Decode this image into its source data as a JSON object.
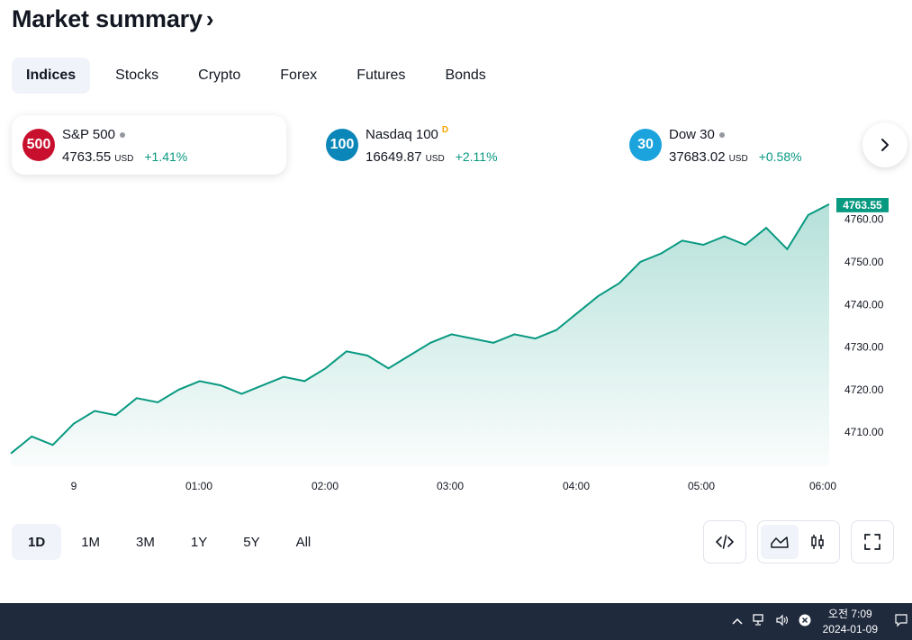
{
  "header": {
    "title": "Market summary",
    "chevron": "›"
  },
  "tabs": [
    {
      "label": "Indices",
      "active": true
    },
    {
      "label": "Stocks"
    },
    {
      "label": "Crypto"
    },
    {
      "label": "Forex"
    },
    {
      "label": "Futures"
    },
    {
      "label": "Bonds"
    }
  ],
  "cards": [
    {
      "badge": "500",
      "badge_color": "#c8102e",
      "name": "S&P 500",
      "value": "4763.55",
      "currency": "USD",
      "change": "+1.41%"
    },
    {
      "badge": "100",
      "badge_color": "#0a86b8",
      "name": "Nasdaq 100",
      "marker": "D",
      "value": "16649.87",
      "currency": "USD",
      "change": "+2.11%"
    },
    {
      "badge": "30",
      "badge_color": "#1aa3dc",
      "name": "Dow 30",
      "value": "37683.02",
      "currency": "USD",
      "change": "+0.58%"
    }
  ],
  "next_icon": "chevron-right-icon",
  "chart_data": {
    "type": "area",
    "series": [
      {
        "values": [
          4705,
          4709,
          4707,
          4712,
          4715,
          4714,
          4718,
          4717,
          4720,
          4722,
          4721,
          4719,
          4721,
          4723,
          4722,
          4725,
          4729,
          4728,
          4725,
          4728,
          4731,
          4733,
          4732,
          4731,
          4733,
          4732,
          4734,
          4738,
          4742,
          4745,
          4750,
          4752,
          4755,
          4754,
          4756,
          4754,
          4758,
          4753,
          4761,
          4763.55
        ]
      }
    ],
    "x_ticks": [
      "9",
      "01:00",
      "02:00",
      "03:00",
      "04:00",
      "05:00",
      "06:00"
    ],
    "y_ticks": [
      "4760.00",
      "4750.00",
      "4740.00",
      "4730.00",
      "4720.00",
      "4710.00"
    ],
    "ylim": [
      4702,
      4765
    ],
    "last_label": "4763.55",
    "line_color": "#089981"
  },
  "ranges": [
    {
      "label": "1D",
      "active": true
    },
    {
      "label": "1M"
    },
    {
      "label": "3M"
    },
    {
      "label": "1Y"
    },
    {
      "label": "5Y"
    },
    {
      "label": "All"
    }
  ],
  "taskbar": {
    "time": "오전 7:09",
    "date": "2024-01-09"
  }
}
